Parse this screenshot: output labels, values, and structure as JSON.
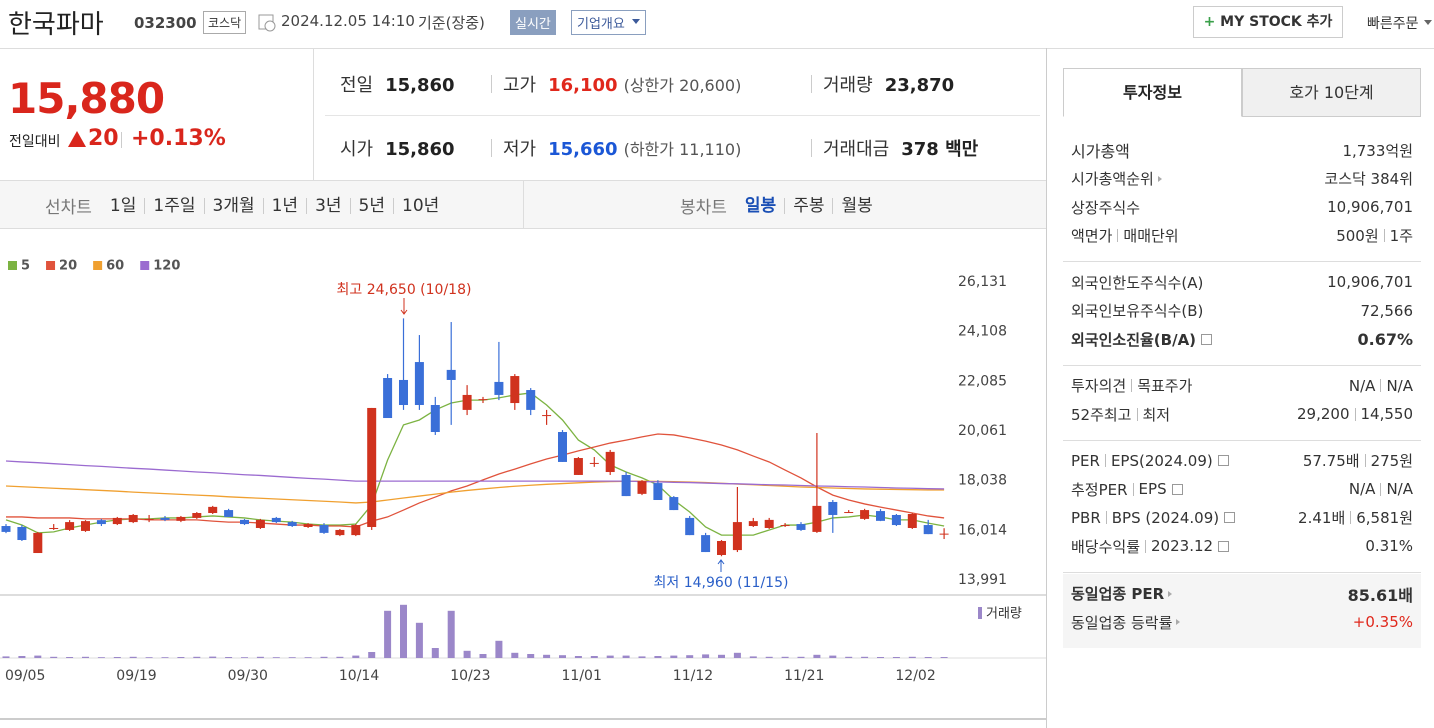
{
  "header": {
    "name": "한국파마",
    "code": "032300",
    "market": "코스닥",
    "datetime": "2024.12.05 14:10",
    "basis": "기준(장중)",
    "realtime": "실시간",
    "overview": "기업개요",
    "my_stock": "MY STOCK 추가",
    "quick_order": "빠른주문"
  },
  "price": {
    "current": "15,880",
    "change_label": "전일대비",
    "change": "20",
    "rate": "+0.13%"
  },
  "summary": [
    [
      {
        "label": "전일",
        "value": "15,860"
      },
      {
        "label": "고가",
        "value": "16,100",
        "note": "(상한가 20,600)",
        "color": "#e0281c"
      },
      {
        "label": "거래량",
        "value": "23,870"
      }
    ],
    [
      {
        "label": "시가",
        "value": "15,860"
      },
      {
        "label": "저가",
        "value": "15,660",
        "note": "(하한가 11,110)",
        "color": "#1b57d6"
      },
      {
        "label": "거래대금",
        "value": "378 백만"
      }
    ]
  ],
  "period_tabs": {
    "line_label": "선차트",
    "line_items": [
      "1일",
      "1주일",
      "3개월",
      "1년",
      "3년",
      "5년",
      "10년"
    ],
    "candle_label": "봉차트",
    "candle_items": [
      "일봉",
      "주봉",
      "월봉"
    ],
    "active_candle": 0
  },
  "chart_data": [
    {
      "type": "candlestick",
      "categories": [
        "09/05",
        null,
        null,
        null,
        null,
        null,
        null,
        "09/19",
        null,
        null,
        null,
        null,
        null,
        null,
        "09/30",
        null,
        null,
        null,
        null,
        null,
        null,
        "10/14",
        null,
        null,
        null,
        null,
        null,
        null,
        "10/23",
        null,
        null,
        null,
        null,
        null,
        null,
        "11/01",
        null,
        null,
        null,
        null,
        null,
        null,
        "11/12",
        null,
        null,
        null,
        null,
        null,
        null,
        "11/21",
        null,
        null,
        null,
        null,
        null,
        null,
        "12/02",
        null,
        null,
        null
      ],
      "open": [
        16190,
        16150,
        15090,
        16090,
        16030,
        15990,
        16430,
        16270,
        16350,
        16480,
        16520,
        16400,
        16520,
        16720,
        16840,
        16440,
        16110,
        16520,
        16350,
        16150,
        16230,
        15820,
        15820,
        16150,
        22220,
        22140,
        22870,
        21120,
        22550,
        20920,
        21320,
        22060,
        21200,
        21730,
        20710,
        20020,
        18270,
        18760,
        18390,
        18270,
        17500,
        17940,
        17370,
        16520,
        15820,
        15010,
        15210,
        16190,
        16110,
        16230,
        16270,
        15950,
        17170,
        16760,
        16480,
        16800,
        16640,
        16110,
        16230,
        15860
      ],
      "high": [
        16270,
        16230,
        15950,
        16270,
        16430,
        16430,
        16480,
        16560,
        16680,
        16640,
        16600,
        16600,
        16760,
        17010,
        16890,
        16480,
        16480,
        16560,
        16400,
        16310,
        16310,
        16070,
        16270,
        21000,
        22380,
        24650,
        23970,
        21450,
        24500,
        21930,
        21450,
        23690,
        22380,
        21810,
        20920,
        20100,
        19000,
        19000,
        19290,
        18390,
        18060,
        18060,
        17410,
        16600,
        15910,
        15620,
        17780,
        16520,
        16520,
        16310,
        16350,
        19980,
        17250,
        16840,
        16890,
        16880,
        16680,
        16720,
        16440,
        16100
      ],
      "low": [
        15900,
        15580,
        15090,
        16030,
        15990,
        15950,
        16190,
        16230,
        16310,
        16350,
        16390,
        16350,
        16480,
        16680,
        16560,
        16230,
        16070,
        16310,
        16150,
        16110,
        15870,
        15780,
        15780,
        16030,
        20590,
        20920,
        20920,
        19900,
        20310,
        20710,
        21200,
        21320,
        20920,
        20710,
        20310,
        18800,
        18270,
        18600,
        18270,
        17410,
        17450,
        17250,
        16840,
        15820,
        15130,
        14960,
        15130,
        16150,
        16070,
        16150,
        15990,
        15910,
        15910,
        16720,
        16440,
        16390,
        16190,
        16070,
        15860,
        15660
      ],
      "close": [
        15950,
        15620,
        15910,
        16110,
        16350,
        16390,
        16270,
        16520,
        16640,
        16480,
        16440,
        16560,
        16720,
        16970,
        16560,
        16270,
        16440,
        16350,
        16190,
        16270,
        15910,
        16030,
        16230,
        21000,
        20590,
        21120,
        21120,
        20020,
        22140,
        21530,
        21360,
        21530,
        22300,
        20920,
        20710,
        18800,
        18960,
        18760,
        19210,
        17410,
        18020,
        17250,
        16840,
        15820,
        15130,
        15580,
        16350,
        16390,
        16440,
        16230,
        16030,
        17010,
        16640,
        16760,
        16840,
        16400,
        16230,
        16680,
        15860,
        15880
      ],
      "up_color": "#d0321e",
      "down_color": "#3a6fd8",
      "series": [
        {
          "name": "5",
          "color": "#7cb342",
          "values": [
            16440,
            16230,
            15910,
            15950,
            16110,
            16230,
            16350,
            16440,
            16480,
            16480,
            16520,
            16520,
            16560,
            16600,
            16560,
            16520,
            16440,
            16390,
            16350,
            16270,
            16230,
            16230,
            16270,
            17050,
            18880,
            20310,
            20510,
            20920,
            21200,
            21320,
            21320,
            21410,
            21530,
            21610,
            21120,
            20510,
            19690,
            19290,
            18680,
            18390,
            18150,
            17860,
            17250,
            16760,
            16150,
            15820,
            15820,
            15820,
            16030,
            16230,
            16230,
            16350,
            16520,
            16560,
            16640,
            16560,
            16440,
            16440,
            16310,
            16190
          ]
        },
        {
          "name": "20",
          "color": "#e0533c",
          "values": [
            16560,
            16560,
            16520,
            16520,
            16520,
            16480,
            16480,
            16480,
            16480,
            16440,
            16440,
            16440,
            16440,
            16390,
            16350,
            16350,
            16310,
            16270,
            16230,
            16230,
            16190,
            16190,
            16150,
            16390,
            16560,
            16840,
            17130,
            17370,
            17620,
            17820,
            18070,
            18310,
            18510,
            18720,
            18920,
            19080,
            19250,
            19410,
            19570,
            19690,
            19820,
            19940,
            19900,
            19780,
            19650,
            19490,
            19290,
            19040,
            18800,
            18470,
            18150,
            17780,
            17450,
            17250,
            17090,
            16960,
            16840,
            16720,
            16600,
            16520
          ]
        },
        {
          "name": "60",
          "color": "#f0a030",
          "values": [
            17820,
            17790,
            17760,
            17730,
            17700,
            17670,
            17640,
            17610,
            17570,
            17540,
            17510,
            17480,
            17450,
            17420,
            17380,
            17350,
            17320,
            17290,
            17260,
            17230,
            17200,
            17170,
            17130,
            17170,
            17250,
            17330,
            17410,
            17490,
            17570,
            17640,
            17700,
            17760,
            17810,
            17850,
            17890,
            17920,
            17950,
            17980,
            18000,
            18010,
            18020,
            18010,
            18000,
            17980,
            17960,
            17930,
            17900,
            17870,
            17840,
            17810,
            17780,
            17760,
            17740,
            17720,
            17700,
            17690,
            17680,
            17670,
            17660,
            17660
          ]
        },
        {
          "name": "120",
          "color": "#9b6bd0",
          "values": [
            18840,
            18800,
            18770,
            18730,
            18690,
            18650,
            18620,
            18580,
            18540,
            18510,
            18470,
            18430,
            18390,
            18360,
            18320,
            18280,
            18250,
            18210,
            18170,
            18130,
            18100,
            18060,
            18020,
            18020,
            18020,
            18020,
            18020,
            18020,
            18020,
            18020,
            18020,
            18020,
            18020,
            18020,
            18020,
            18020,
            18020,
            18020,
            18020,
            18020,
            18000,
            17990,
            17970,
            17960,
            17940,
            17920,
            17910,
            17890,
            17870,
            17860,
            17840,
            17820,
            17810,
            17790,
            17780,
            17760,
            17740,
            17730,
            17710,
            17700
          ]
        }
      ],
      "ylim": [
        13991,
        26131
      ],
      "yticks": [
        {
          "value": 13991,
          "label": "13,991"
        },
        {
          "value": 16014,
          "label": "16,014"
        },
        {
          "value": 18038,
          "label": "18,038"
        },
        {
          "value": 20061,
          "label": "20,061"
        },
        {
          "value": 22085,
          "label": "22,085"
        },
        {
          "value": 24108,
          "label": "24,108"
        },
        {
          "value": 26131,
          "label": "26,131"
        }
      ],
      "grid": false,
      "annotations": [
        "최고 24,650 (10/18)",
        "최저 14,960 (11/15)"
      ]
    },
    {
      "type": "bar",
      "series": [
        {
          "name": "거래량",
          "color": "#9b87c9",
          "values": [
            40000,
            50000,
            60000,
            30000,
            25000,
            30000,
            20000,
            25000,
            30000,
            20000,
            20000,
            25000,
            30000,
            35000,
            25000,
            20000,
            30000,
            20000,
            20000,
            20000,
            30000,
            30000,
            60000,
            150000,
            1180000,
            1330000,
            880000,
            250000,
            1180000,
            180000,
            100000,
            430000,
            130000,
            100000,
            80000,
            70000,
            50000,
            50000,
            60000,
            60000,
            40000,
            50000,
            60000,
            70000,
            90000,
            80000,
            130000,
            40000,
            30000,
            30000,
            30000,
            80000,
            60000,
            30000,
            30000,
            25000,
            25000,
            30000,
            25000,
            23870
          ]
        }
      ],
      "ylim": [
        0,
        1500000
      ]
    }
  ],
  "invest_info": {
    "tabs": [
      "투자정보",
      "호가 10단계"
    ],
    "groups": [
      [
        {
          "label": [
            "시가총액"
          ],
          "value": [
            "1,733억원"
          ]
        },
        {
          "label": [
            "시가총액순위"
          ],
          "value": [
            "코스닥 384위"
          ],
          "arrow": true
        },
        {
          "label": [
            "상장주식수"
          ],
          "value": [
            "10,906,701"
          ]
        },
        {
          "label": [
            "액면가",
            "매매단위"
          ],
          "value": [
            "500원",
            "1주"
          ]
        }
      ],
      [
        {
          "label": [
            "외국인한도주식수(A)"
          ],
          "value": [
            "10,906,701"
          ]
        },
        {
          "label": [
            "외국인보유주식수(B)"
          ],
          "value": [
            "72,566"
          ]
        },
        {
          "label": [
            "외국인소진율(B/A)"
          ],
          "value": [
            "0.67%"
          ],
          "help": true,
          "bold": true
        }
      ],
      [
        {
          "label": [
            "투자의견",
            "목표주가"
          ],
          "value": [
            "N/A",
            "N/A"
          ]
        },
        {
          "label": [
            "52주최고",
            "최저"
          ],
          "value": [
            "29,200",
            "14,550"
          ]
        }
      ],
      [
        {
          "label": [
            "PER",
            "EPS(2024.09)"
          ],
          "value": [
            "57.75배",
            "275원"
          ],
          "help": true
        },
        {
          "label": [
            "추정PER",
            "EPS"
          ],
          "value": [
            "N/A",
            "N/A"
          ],
          "help": true
        },
        {
          "label": [
            "PBR",
            "BPS (2024.09)"
          ],
          "value": [
            "2.41배",
            "6,581원"
          ],
          "help": true
        },
        {
          "label": [
            "배당수익률",
            "2023.12"
          ],
          "value": [
            "0.31%"
          ],
          "help": true
        }
      ],
      [
        {
          "label": [
            "동일업종 PER"
          ],
          "value": [
            "85.61배"
          ],
          "arrow": true,
          "bold": true
        },
        {
          "label": [
            "동일업종 등락률"
          ],
          "value": [
            "+0.35%"
          ],
          "arrow": true,
          "color": "#e0281c"
        }
      ]
    ]
  }
}
